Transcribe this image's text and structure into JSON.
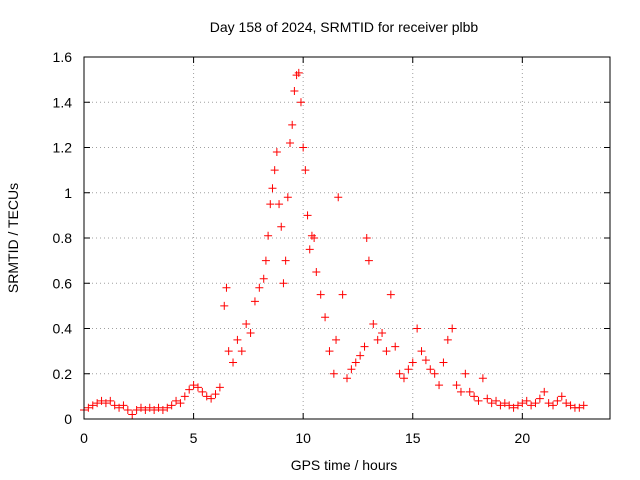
{
  "chart_data": {
    "type": "scatter",
    "title": "Day 158 of 2024, SRMTID for receiver plbb",
    "xlabel": "GPS time / hours",
    "ylabel": "SRMTID / TECUs",
    "xlim": [
      0,
      24
    ],
    "ylim": [
      0,
      1.6
    ],
    "xticks": [
      0,
      5,
      10,
      15,
      20
    ],
    "xtick_labels": [
      "0",
      "5",
      "10",
      "15",
      "20"
    ],
    "yticks": [
      0,
      0.2,
      0.4,
      0.6,
      0.8,
      1.0,
      1.2,
      1.4,
      1.6
    ],
    "ytick_labels": [
      "0",
      "0.2",
      "0.4",
      "0.6",
      "0.8",
      "1",
      "1.2",
      "1.4",
      "1.6"
    ],
    "grid": true,
    "marker": "+",
    "color": "#ff0000",
    "series": [
      {
        "name": "SRMTID",
        "x": [
          0.0,
          0.2,
          0.4,
          0.6,
          0.8,
          1.0,
          1.2,
          1.4,
          1.6,
          1.8,
          2.0,
          2.2,
          2.4,
          2.6,
          2.8,
          3.0,
          3.2,
          3.4,
          3.6,
          3.8,
          4.0,
          4.2,
          4.4,
          4.6,
          4.8,
          5.0,
          5.2,
          5.4,
          5.6,
          5.8,
          6.0,
          6.2,
          6.4,
          6.5,
          6.6,
          6.8,
          7.0,
          7.2,
          7.4,
          7.6,
          7.8,
          8.0,
          8.2,
          8.3,
          8.4,
          8.5,
          8.6,
          8.7,
          8.8,
          8.9,
          9.0,
          9.1,
          9.2,
          9.3,
          9.4,
          9.5,
          9.6,
          9.7,
          9.8,
          9.9,
          10.0,
          10.1,
          10.2,
          10.3,
          10.4,
          10.5,
          10.6,
          10.8,
          11.0,
          11.2,
          11.4,
          11.5,
          11.6,
          11.8,
          12.0,
          12.2,
          12.4,
          12.6,
          12.8,
          12.9,
          13.0,
          13.2,
          13.4,
          13.6,
          13.8,
          14.0,
          14.2,
          14.4,
          14.6,
          14.8,
          15.0,
          15.2,
          15.4,
          15.6,
          15.8,
          16.0,
          16.2,
          16.4,
          16.6,
          16.8,
          17.0,
          17.2,
          17.4,
          17.6,
          17.8,
          18.0,
          18.2,
          18.4,
          18.6,
          18.8,
          19.0,
          19.2,
          19.4,
          19.6,
          19.8,
          20.0,
          20.2,
          20.4,
          20.6,
          20.8,
          21.0,
          21.2,
          21.4,
          21.6,
          21.8,
          22.0,
          22.2,
          22.4,
          22.6,
          22.8
        ],
        "y": [
          0.04,
          0.05,
          0.06,
          0.07,
          0.08,
          0.07,
          0.08,
          0.06,
          0.05,
          0.06,
          0.04,
          0.02,
          0.04,
          0.05,
          0.04,
          0.05,
          0.04,
          0.05,
          0.04,
          0.05,
          0.06,
          0.08,
          0.07,
          0.1,
          0.13,
          0.15,
          0.14,
          0.12,
          0.1,
          0.09,
          0.11,
          0.14,
          0.5,
          0.58,
          0.3,
          0.25,
          0.35,
          0.3,
          0.42,
          0.38,
          0.52,
          0.58,
          0.62,
          0.7,
          0.81,
          0.95,
          1.02,
          1.1,
          1.18,
          0.95,
          0.85,
          0.6,
          0.7,
          0.98,
          1.22,
          1.3,
          1.45,
          1.52,
          1.53,
          1.4,
          1.2,
          1.1,
          0.9,
          0.75,
          0.81,
          0.8,
          0.65,
          0.55,
          0.45,
          0.3,
          0.2,
          0.35,
          0.98,
          0.55,
          0.18,
          0.22,
          0.25,
          0.28,
          0.32,
          0.8,
          0.7,
          0.42,
          0.35,
          0.38,
          0.3,
          0.55,
          0.32,
          0.2,
          0.18,
          0.22,
          0.25,
          0.4,
          0.3,
          0.26,
          0.22,
          0.2,
          0.15,
          0.25,
          0.35,
          0.4,
          0.15,
          0.12,
          0.2,
          0.12,
          0.1,
          0.08,
          0.18,
          0.09,
          0.07,
          0.08,
          0.06,
          0.07,
          0.06,
          0.05,
          0.06,
          0.07,
          0.08,
          0.06,
          0.07,
          0.09,
          0.12,
          0.07,
          0.06,
          0.08,
          0.1,
          0.07,
          0.06,
          0.05,
          0.05,
          0.06
        ]
      }
    ]
  }
}
